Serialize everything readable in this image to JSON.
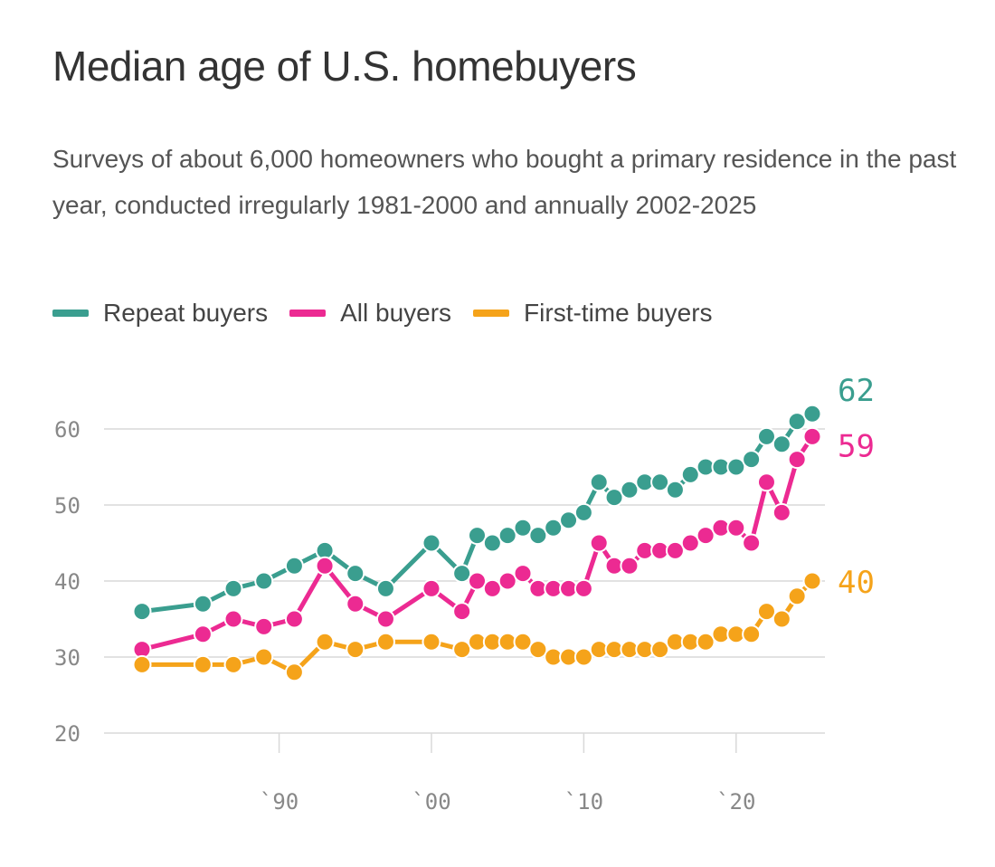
{
  "title": "Median age of U.S. homebuyers",
  "subtitle": "Surveys of about 6,000 homeowners who bought a primary residence in the past year, conducted irregularly 1981-2000 and annually 2002-2025",
  "colors": {
    "repeat": "#3a9e8f",
    "all": "#ec2a92",
    "first": "#f5a31a"
  },
  "chart_data": {
    "type": "line",
    "title": "Median age of U.S. homebuyers",
    "legend_placement": "top",
    "grid": true,
    "ylim": [
      20,
      62
    ],
    "yticks": [
      20,
      30,
      40,
      50,
      60
    ],
    "xlim": [
      1981,
      2025
    ],
    "xticks": [
      {
        "value": 1990,
        "label": "`90"
      },
      {
        "value": 2000,
        "label": "`00"
      },
      {
        "value": 2010,
        "label": "`10"
      },
      {
        "value": 2020,
        "label": "`20"
      }
    ],
    "series": [
      {
        "name": "Repeat buyers",
        "color": "#3a9e8f",
        "end_label": "62",
        "points": [
          [
            1981,
            36
          ],
          [
            1985,
            37
          ],
          [
            1987,
            39
          ],
          [
            1989,
            40
          ],
          [
            1991,
            42
          ],
          [
            1993,
            44
          ],
          [
            1995,
            41
          ],
          [
            1997,
            39
          ],
          [
            2000,
            45
          ],
          [
            2002,
            41
          ],
          [
            2003,
            46
          ],
          [
            2004,
            45
          ],
          [
            2005,
            46
          ],
          [
            2006,
            47
          ],
          [
            2007,
            46
          ],
          [
            2008,
            47
          ],
          [
            2009,
            48
          ],
          [
            2010,
            49
          ],
          [
            2011,
            53
          ],
          [
            2012,
            51
          ],
          [
            2013,
            52
          ],
          [
            2014,
            53
          ],
          [
            2015,
            53
          ],
          [
            2016,
            52
          ],
          [
            2017,
            54
          ],
          [
            2018,
            55
          ],
          [
            2019,
            55
          ],
          [
            2020,
            55
          ],
          [
            2021,
            56
          ],
          [
            2022,
            59
          ],
          [
            2023,
            58
          ],
          [
            2024,
            61
          ],
          [
            2025,
            62
          ]
        ]
      },
      {
        "name": "All buyers",
        "color": "#ec2a92",
        "end_label": "59",
        "points": [
          [
            1981,
            31
          ],
          [
            1985,
            33
          ],
          [
            1987,
            35
          ],
          [
            1989,
            34
          ],
          [
            1991,
            35
          ],
          [
            1993,
            42
          ],
          [
            1995,
            37
          ],
          [
            1997,
            35
          ],
          [
            2000,
            39
          ],
          [
            2002,
            36
          ],
          [
            2003,
            40
          ],
          [
            2004,
            39
          ],
          [
            2005,
            40
          ],
          [
            2006,
            41
          ],
          [
            2007,
            39
          ],
          [
            2008,
            39
          ],
          [
            2009,
            39
          ],
          [
            2010,
            39
          ],
          [
            2011,
            45
          ],
          [
            2012,
            42
          ],
          [
            2013,
            42
          ],
          [
            2014,
            44
          ],
          [
            2015,
            44
          ],
          [
            2016,
            44
          ],
          [
            2017,
            45
          ],
          [
            2018,
            46
          ],
          [
            2019,
            47
          ],
          [
            2020,
            47
          ],
          [
            2021,
            45
          ],
          [
            2022,
            53
          ],
          [
            2023,
            49
          ],
          [
            2024,
            56
          ],
          [
            2025,
            59
          ]
        ]
      },
      {
        "name": "First-time buyers",
        "color": "#f5a31a",
        "end_label": "40",
        "points": [
          [
            1981,
            29
          ],
          [
            1985,
            29
          ],
          [
            1987,
            29
          ],
          [
            1989,
            30
          ],
          [
            1991,
            28
          ],
          [
            1993,
            32
          ],
          [
            1995,
            31
          ],
          [
            1997,
            32
          ],
          [
            2000,
            32
          ],
          [
            2002,
            31
          ],
          [
            2003,
            32
          ],
          [
            2004,
            32
          ],
          [
            2005,
            32
          ],
          [
            2006,
            32
          ],
          [
            2007,
            31
          ],
          [
            2008,
            30
          ],
          [
            2009,
            30
          ],
          [
            2010,
            30
          ],
          [
            2011,
            31
          ],
          [
            2012,
            31
          ],
          [
            2013,
            31
          ],
          [
            2014,
            31
          ],
          [
            2015,
            31
          ],
          [
            2016,
            32
          ],
          [
            2017,
            32
          ],
          [
            2018,
            32
          ],
          [
            2019,
            33
          ],
          [
            2020,
            33
          ],
          [
            2021,
            33
          ],
          [
            2022,
            36
          ],
          [
            2023,
            35
          ],
          [
            2024,
            38
          ],
          [
            2025,
            40
          ]
        ]
      }
    ]
  }
}
